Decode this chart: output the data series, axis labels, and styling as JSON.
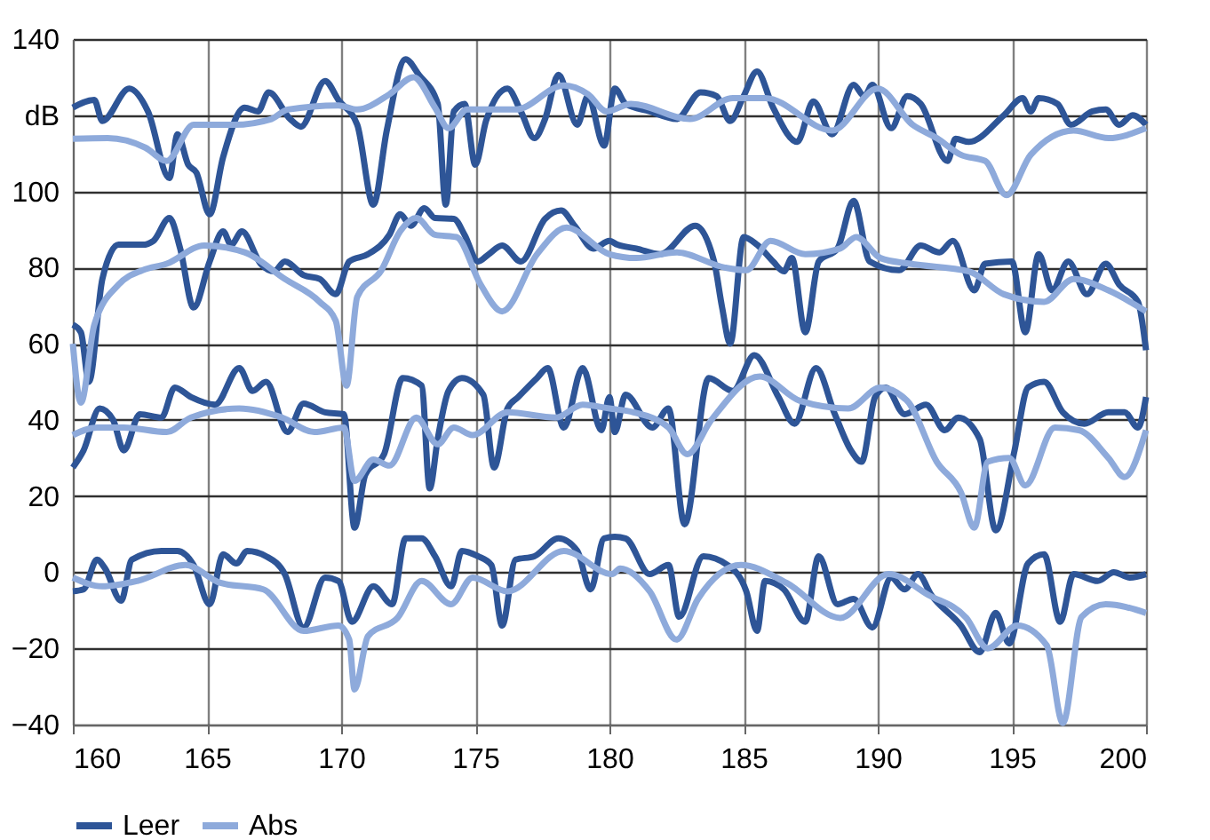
{
  "chart_data": {
    "type": "line",
    "xlim": [
      160,
      200
    ],
    "ylim": [
      -40,
      140
    ],
    "xticks": [
      160,
      165,
      170,
      175,
      180,
      185,
      190,
      195,
      200
    ],
    "yticks": [
      -40,
      -20,
      0,
      20,
      40,
      60,
      80,
      100,
      {
        "value": 120,
        "label": "dB"
      },
      140
    ],
    "grid": true,
    "legend": "bottom",
    "series": [
      {
        "name": "Leer",
        "color": "#2e5597",
        "x": [
          160.0,
          160.8,
          161.1,
          162.1,
          162.8,
          163.6,
          163.9,
          164.3,
          164.6,
          165.1,
          165.6,
          166.4,
          166.9,
          167.3,
          168.1,
          168.5,
          169.4,
          169.9,
          170.6,
          171.2,
          171.7,
          172.4,
          172.9,
          173.6,
          173.9,
          174.2,
          174.6,
          175.0,
          175.4,
          176.2,
          176.7,
          177.2,
          177.6,
          178.1,
          178.8,
          179.2,
          179.8,
          180.2,
          180.6,
          181.5,
          182.5,
          183.4,
          184.0,
          184.5,
          185.0,
          185.5,
          186.1,
          187.0,
          187.6,
          188.3,
          189.1,
          189.5,
          189.8,
          190.5,
          191.1,
          191.6,
          192.6,
          192.9,
          193.4,
          194.7,
          195.4,
          195.7,
          196.0,
          196.7,
          197.2,
          198.0,
          198.5,
          199.0,
          199.5,
          200
        ],
        "values": [
          122,
          124,
          118.5,
          127,
          121,
          103.5,
          115,
          107,
          105,
          94,
          109,
          122,
          121,
          126,
          119,
          117,
          129,
          124,
          117.5,
          96.5,
          116,
          134.7,
          130.6,
          123,
          96.5,
          121,
          123,
          107,
          118.5,
          127,
          121,
          114,
          119,
          130.6,
          117.5,
          125,
          112,
          127,
          123,
          121,
          119,
          126,
          125,
          118.5,
          125,
          131.5,
          122,
          113,
          123.6,
          115,
          128,
          125,
          128,
          116.6,
          125,
          123,
          108,
          113.8,
          113,
          120,
          124.5,
          121,
          124.5,
          123,
          117.5,
          121,
          121.5,
          117.5,
          120,
          117.5
        ]
      },
      {
        "name": "Abs",
        "color": "#8eaadb",
        "x": [
          160.0,
          161.3,
          162.7,
          163.5,
          164.5,
          166.0,
          167.4,
          168.0,
          169.9,
          170.6,
          171.8,
          172.7,
          173.5,
          174.0,
          174.7,
          176.5,
          178.3,
          179.2,
          179.9,
          180.8,
          183.0,
          184.6,
          185.8,
          188.3,
          190.0,
          191.3,
          192.2,
          193.1,
          194.0,
          194.8,
          195.7,
          197.3,
          198.6,
          200
        ],
        "values": [
          113.8,
          114,
          111.5,
          108,
          117.5,
          117.5,
          119,
          121.5,
          122.6,
          121.5,
          125.5,
          130,
          122,
          116.6,
          121.5,
          121.5,
          127.8,
          125.5,
          121,
          123,
          119,
          124.5,
          124.5,
          116,
          127,
          117.5,
          114,
          109.6,
          108,
          99,
          109.6,
          116,
          114,
          116.6
        ]
      },
      {
        "color": "#2e5597",
        "x": [
          160.0,
          160.3,
          160.6,
          161.1,
          161.7,
          162.6,
          163.0,
          163.6,
          164.0,
          164.5,
          165.1,
          165.6,
          165.9,
          166.3,
          167.0,
          167.5,
          167.9,
          168.6,
          169.2,
          169.8,
          170.3,
          171.0,
          171.8,
          172.2,
          172.6,
          173.1,
          173.5,
          174.2,
          174.6,
          175.1,
          175.5,
          176.0,
          176.7,
          177.6,
          178.2,
          178.7,
          179.4,
          180.0,
          180.3,
          181.0,
          181.9,
          183.2,
          183.9,
          184.2,
          184.5,
          185.0,
          185.5,
          186.1,
          186.5,
          186.8,
          187.3,
          187.8,
          188.5,
          189.1,
          189.7,
          190.8,
          191.6,
          192.3,
          192.8,
          193.6,
          194.0,
          195.0,
          195.5,
          196.0,
          196.5,
          197.1,
          197.8,
          198.5,
          199.0,
          199.7,
          200
        ],
        "values": [
          65,
          63,
          50,
          77,
          86,
          86,
          87,
          93,
          85,
          69.5,
          81.6,
          89.5,
          86,
          89.5,
          81,
          79,
          81.6,
          78,
          77,
          73,
          81.6,
          83.5,
          88.6,
          94,
          91,
          95.6,
          93,
          92.8,
          88.6,
          81.6,
          83.5,
          85.8,
          81.6,
          92.8,
          95,
          91,
          85,
          87,
          86,
          85,
          83.5,
          91,
          81.6,
          69.5,
          60,
          88,
          86,
          81.6,
          79,
          82.5,
          63,
          81.6,
          85,
          97.5,
          81.6,
          79.3,
          85.8,
          84,
          87,
          74,
          81,
          81.6,
          63,
          83.5,
          74,
          81.6,
          73,
          81,
          75.5,
          71,
          58.3
        ]
      },
      {
        "color": "#8eaadb",
        "x": [
          160.0,
          160.3,
          160.8,
          161.7,
          162.6,
          163.5,
          164.9,
          166.4,
          167.9,
          169.2,
          169.8,
          170.2,
          170.6,
          171.5,
          172.2,
          172.8,
          173.5,
          174.3,
          175.2,
          176.0,
          177.3,
          178.4,
          180.0,
          181.0,
          182.5,
          184.3,
          185.1,
          186.0,
          187.3,
          188.6,
          189.2,
          190.1,
          191.2,
          193.4,
          194.7,
          196.2,
          197.3,
          198.6,
          200
        ],
        "values": [
          60,
          44.5,
          65,
          75.5,
          79.3,
          81,
          85.8,
          84,
          77,
          71,
          66,
          49,
          72.3,
          79.3,
          89.5,
          93,
          88.6,
          88,
          75.5,
          68.5,
          83.5,
          90.5,
          83.5,
          82.5,
          84,
          80,
          79.3,
          87,
          83.5,
          85,
          88,
          82.5,
          81,
          79,
          73,
          71,
          77,
          74,
          68.5
        ]
      },
      {
        "color": "#2e5597",
        "x": [
          160.0,
          160.4,
          161.0,
          161.5,
          161.9,
          162.5,
          163.3,
          163.8,
          164.4,
          165.3,
          166.2,
          166.7,
          167.2,
          168.0,
          168.6,
          169.4,
          170.1,
          170.5,
          170.9,
          171.6,
          172.3,
          173.0,
          173.3,
          173.6,
          174.0,
          174.5,
          175.3,
          175.7,
          176.2,
          176.6,
          177.3,
          177.7,
          178.3,
          179.0,
          179.7,
          180.0,
          180.2,
          180.6,
          181.6,
          182.2,
          182.8,
          183.7,
          184.6,
          185.4,
          186.3,
          186.9,
          187.7,
          188.4,
          189.0,
          189.4,
          189.9,
          190.3,
          191.0,
          191.8,
          192.5,
          193.0,
          193.8,
          194.4,
          195.1,
          195.6,
          196.2,
          196.9,
          197.7,
          198.6,
          199.2,
          199.7,
          200
        ],
        "values": [
          27.5,
          32,
          43,
          40,
          32,
          41.5,
          40.6,
          48.5,
          46,
          44,
          53.6,
          47.6,
          50,
          36.8,
          44.3,
          42,
          41.5,
          11.7,
          25.6,
          31,
          51,
          49,
          22,
          35,
          47.6,
          51,
          46.6,
          27.5,
          43,
          46,
          51,
          53.6,
          38,
          53.6,
          37.3,
          46,
          36.8,
          46.6,
          38,
          43,
          12.6,
          51,
          47.6,
          57,
          46,
          39,
          53.6,
          41.5,
          32,
          29,
          46,
          48.5,
          41.5,
          44,
          37.3,
          40.6,
          35,
          11,
          32,
          48.5,
          50,
          42,
          39,
          42,
          42,
          38,
          46
        ]
      },
      {
        "color": "#8eaadb",
        "x": [
          160.0,
          160.9,
          161.9,
          163.5,
          164.4,
          166.2,
          167.8,
          169.0,
          170.1,
          170.5,
          171.2,
          171.8,
          172.8,
          173.6,
          174.2,
          174.9,
          176.2,
          178.0,
          179.0,
          180.0,
          180.9,
          182.2,
          182.9,
          183.8,
          185.6,
          187.1,
          188.9,
          190.1,
          191.1,
          192.2,
          193.1,
          193.6,
          194.1,
          194.9,
          195.5,
          196.6,
          197.5,
          198.6,
          199.2,
          200
        ],
        "values": [
          36,
          38,
          38,
          36.8,
          40.6,
          43,
          40.6,
          36.8,
          38,
          24,
          29.6,
          28,
          40.6,
          33.6,
          38,
          36,
          42,
          40.6,
          44,
          43,
          42,
          38,
          31,
          40,
          51.4,
          45,
          43,
          48.5,
          45,
          29,
          21,
          11.7,
          29,
          30,
          22.8,
          38,
          37.3,
          30,
          25,
          37.3
        ]
      },
      {
        "color": "#2e5597",
        "x": [
          160.0,
          160.4,
          160.9,
          161.2,
          161.8,
          162.2,
          163.3,
          163.9,
          164.5,
          165.1,
          165.6,
          166.1,
          166.5,
          167.2,
          167.9,
          168.6,
          169.4,
          169.9,
          170.4,
          171.2,
          171.9,
          172.4,
          173.0,
          173.5,
          174.1,
          174.5,
          175.1,
          175.6,
          176.0,
          176.5,
          177.2,
          178.1,
          178.8,
          179.3,
          179.8,
          180.2,
          180.6,
          181.5,
          182.2,
          182.6,
          183.5,
          184.4,
          185.1,
          185.5,
          185.8,
          186.5,
          187.3,
          187.8,
          188.5,
          189.1,
          189.8,
          190.5,
          191.0,
          191.5,
          192.0,
          193.1,
          193.8,
          194.4,
          194.9,
          195.6,
          196.2,
          196.8,
          197.3,
          198.2,
          198.8,
          199.4,
          200
        ],
        "values": [
          -5,
          -4.5,
          3.3,
          1,
          -7.5,
          3.3,
          5.6,
          5.6,
          1.9,
          -8.4,
          4.7,
          2.3,
          5.6,
          4.2,
          -0.5,
          -14.5,
          -1.4,
          -2.3,
          -13,
          -3.7,
          -8.4,
          8.9,
          8.9,
          4.2,
          -3.7,
          5.6,
          4.2,
          1.9,
          -14,
          3.3,
          4.2,
          8.9,
          5.6,
          -4.5,
          8.9,
          9.3,
          8.9,
          -0.5,
          1.9,
          -11.7,
          4.2,
          1.9,
          -5,
          -15.4,
          -2.3,
          -4.5,
          -13,
          4.2,
          -8.4,
          -7,
          -14.5,
          -1.4,
          -4.5,
          -0.5,
          -6,
          -14,
          -21,
          -10.7,
          -18.7,
          2.3,
          4.7,
          -13,
          -0.5,
          -2.3,
          0,
          -1.4,
          -0.5
        ]
      },
      {
        "color": "#8eaadb",
        "x": [
          160.0,
          161.1,
          162.4,
          164.2,
          165.5,
          167.1,
          168.6,
          169.9,
          170.3,
          170.5,
          171.0,
          172.1,
          173.0,
          174.1,
          174.9,
          176.2,
          178.3,
          180.1,
          180.4,
          181.5,
          182.5,
          183.3,
          184.9,
          186.6,
          188.6,
          190.4,
          191.9,
          193.3,
          194.1,
          195.2,
          196.3,
          196.9,
          197.6,
          198.5,
          200
        ],
        "values": [
          -1.4,
          -3.7,
          -2.3,
          1.9,
          -2.8,
          -4.5,
          -15.4,
          -14,
          -17.7,
          -30.8,
          -16.8,
          -12,
          -2.3,
          -8.4,
          -1.4,
          -5,
          5.6,
          -0.5,
          1,
          -5,
          -17.7,
          -7,
          1.9,
          -2.8,
          -12,
          -0.5,
          -6,
          -12,
          -20,
          -14,
          -19.2,
          -39.6,
          -11.7,
          -8.4,
          -10.7
        ]
      }
    ]
  }
}
